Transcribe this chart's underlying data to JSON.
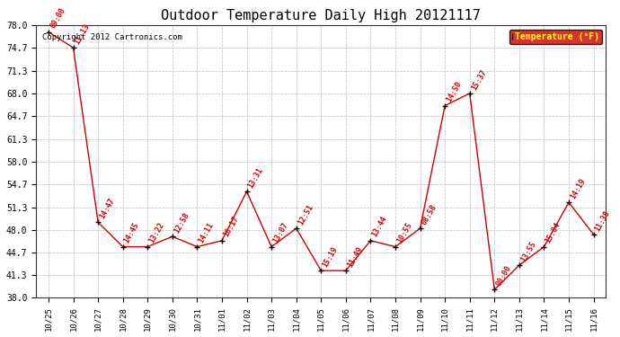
{
  "title": "Outdoor Temperature Daily High 20121117",
  "copyright": "Copyright 2012 Cartronics.com",
  "legend_label": "Temperature (°F)",
  "x_labels": [
    "10/25",
    "10/26",
    "10/27",
    "10/28",
    "10/29",
    "10/30",
    "10/31",
    "11/01",
    "11/02",
    "11/03",
    "11/04",
    "11/05",
    "11/06",
    "11/07",
    "11/08",
    "11/09",
    "11/10",
    "11/11",
    "11/12",
    "11/13",
    "11/14",
    "11/15",
    "11/16"
  ],
  "y_values": [
    77.0,
    74.7,
    49.1,
    45.5,
    45.5,
    47.0,
    45.5,
    46.4,
    53.6,
    45.5,
    48.2,
    42.0,
    42.0,
    46.4,
    45.5,
    48.2,
    66.2,
    68.0,
    39.2,
    42.8,
    45.5,
    52.0,
    47.3
  ],
  "point_labels": [
    "09:00",
    "11:13",
    "14:47",
    "14:45",
    "13:22",
    "12:58",
    "14:11",
    "16:17",
    "13:31",
    "13:07",
    "12:51",
    "15:19",
    "11:49",
    "13:44",
    "10:55",
    "08:58",
    "14:50",
    "15:37",
    "00:00",
    "13:55",
    "15:04",
    "14:19",
    "11:38"
  ],
  "y_ticks": [
    38.0,
    41.3,
    44.7,
    48.0,
    51.3,
    54.7,
    58.0,
    61.3,
    64.7,
    68.0,
    71.3,
    74.7,
    78.0
  ],
  "ylim": [
    38.0,
    78.0
  ],
  "line_color": "#cc0000",
  "marker_color": "#000000",
  "label_color": "#cc0000",
  "background_color": "#ffffff",
  "grid_color": "#bbbbbb",
  "title_fontsize": 11,
  "copyright_fontsize": 6.5,
  "label_fontsize": 6,
  "legend_bg": "#cc0000",
  "legend_text_color": "#ffff00"
}
